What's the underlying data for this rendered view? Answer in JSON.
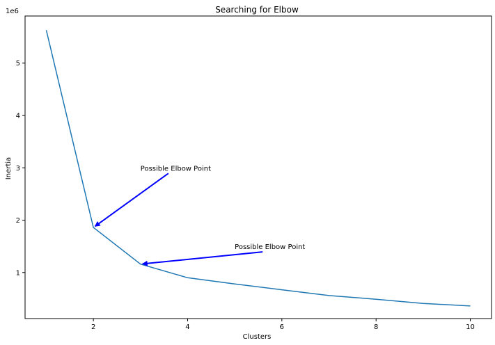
{
  "chart_data": {
    "type": "line",
    "title": "Searching for Elbow",
    "xlabel": "Clusters",
    "ylabel": "Inertia",
    "y_offset_label": "1e6",
    "xlim": [
      0.55,
      10.45
    ],
    "ylim": [
      0.12,
      5.9
    ],
    "x_ticks": [
      2,
      4,
      6,
      8,
      10
    ],
    "y_ticks": [
      1,
      2,
      3,
      4,
      5
    ],
    "grid": false,
    "series": [
      {
        "color": "#1f77b4",
        "x": [
          1,
          2,
          3,
          4,
          5,
          6,
          7,
          8,
          9,
          10
        ],
        "y": [
          5.63,
          1.86,
          1.16,
          0.9,
          0.78,
          0.67,
          0.56,
          0.49,
          0.41,
          0.36
        ]
      }
    ],
    "annotations": [
      {
        "text": "Possible Elbow Point",
        "xy": [
          2,
          1.86
        ],
        "xytext": [
          3,
          3.0
        ],
        "color": "#0000ff"
      },
      {
        "text": "Possible Elbow Point",
        "xy": [
          3,
          1.16
        ],
        "xytext": [
          5,
          1.5
        ],
        "color": "#0000ff"
      }
    ]
  }
}
